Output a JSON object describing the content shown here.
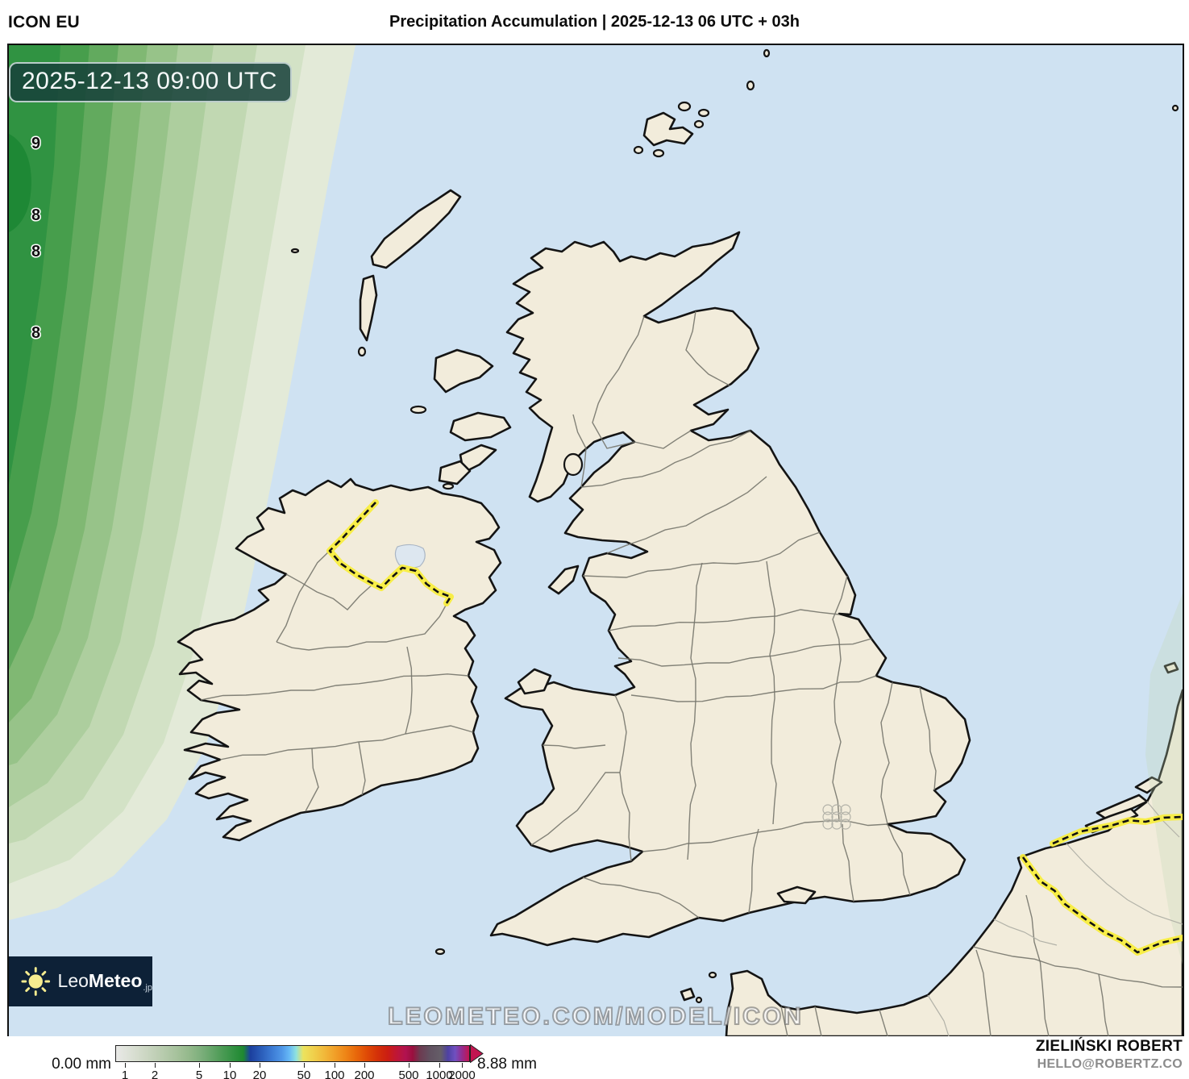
{
  "header": {
    "model": "ICON EU",
    "title": "Precipitation Accumulation | 2025-12-13 06 UTC + 03h"
  },
  "map": {
    "timestamp": "2025-12-13 09:00 UTC",
    "contour_labels": [
      "9",
      "8",
      "8",
      "8"
    ],
    "watermark": "LEOMETEO.COM/MODEL/ICON",
    "logo": {
      "brand_light": "Leo",
      "brand_bold": "Meteo",
      "suffix": ".jp"
    }
  },
  "legend": {
    "min_label": "0.00 mm",
    "max_label": "8.88 mm",
    "unit": "mm",
    "ticks": [
      "1",
      "2",
      "5",
      "10",
      "20",
      "50",
      "100",
      "200",
      "500",
      "1000",
      "2000"
    ],
    "gradient": [
      {
        "p": 0,
        "c": "#e9e9e7"
      },
      {
        "p": 3,
        "c": "#dfe3da"
      },
      {
        "p": 6,
        "c": "#d5dccd"
      },
      {
        "p": 9,
        "c": "#c9d5c0"
      },
      {
        "p": 12,
        "c": "#bdceb3"
      },
      {
        "p": 15,
        "c": "#b0c7a6"
      },
      {
        "p": 18,
        "c": "#a2c098"
      },
      {
        "p": 21,
        "c": "#92b88a"
      },
      {
        "p": 24,
        "c": "#7daf7c"
      },
      {
        "p": 27,
        "c": "#65a569"
      },
      {
        "p": 30,
        "c": "#4c9b55"
      },
      {
        "p": 33,
        "c": "#349243"
      },
      {
        "p": 36,
        "c": "#1e8931"
      },
      {
        "p": 38,
        "c": "#1c3f9e"
      },
      {
        "p": 41,
        "c": "#2a5cb8"
      },
      {
        "p": 44,
        "c": "#3b79d2"
      },
      {
        "p": 47,
        "c": "#4f97e8"
      },
      {
        "p": 49,
        "c": "#65b7f6"
      },
      {
        "p": 51,
        "c": "#8fe2de"
      },
      {
        "p": 53,
        "c": "#ece35e"
      },
      {
        "p": 56,
        "c": "#f0cf4b"
      },
      {
        "p": 59,
        "c": "#f1b83a"
      },
      {
        "p": 62,
        "c": "#f19f28"
      },
      {
        "p": 65,
        "c": "#ee8517"
      },
      {
        "p": 68,
        "c": "#e8680b"
      },
      {
        "p": 71,
        "c": "#df4a06"
      },
      {
        "p": 74,
        "c": "#d43108"
      },
      {
        "p": 77,
        "c": "#cb1d13"
      },
      {
        "p": 79,
        "c": "#c11731"
      },
      {
        "p": 82,
        "c": "#b11250"
      },
      {
        "p": 84,
        "c": "#9a0f3e"
      },
      {
        "p": 86,
        "c": "#6d3a50"
      },
      {
        "p": 89,
        "c": "#615261"
      },
      {
        "p": 92,
        "c": "#655e68"
      },
      {
        "p": 94,
        "c": "#4e41a3"
      },
      {
        "p": 96,
        "c": "#7050c0"
      },
      {
        "p": 98,
        "c": "#962b8e"
      },
      {
        "p": 100,
        "c": "#c21550"
      }
    ]
  },
  "credits": {
    "author": "ZIELIŃSKI ROBERT",
    "contact": "HELLO@ROBERTZ.CO"
  },
  "colors": {
    "ocean": "#cfe2f2",
    "land": "#f2ecdb",
    "coast": "#141414",
    "boundary": "#75756c",
    "boundary_light": "#b2b2a8",
    "border_glow": "#f8ee3b",
    "lake": "#dde7f0",
    "arrow_fill": "#c21550",
    "sun": "#f6ec8f",
    "logo_bg": "#0d2137",
    "precip_bands": [
      "#e3ead8",
      "#d3e2c6",
      "#c1d8b2",
      "#adce9e",
      "#97c389",
      "#80b873",
      "#62aa5e",
      "#479e4c",
      "#309342",
      "#1e8835"
    ]
  }
}
